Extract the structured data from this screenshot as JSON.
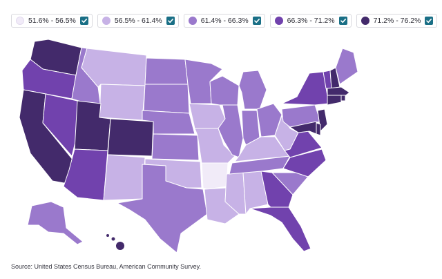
{
  "legend": {
    "items": [
      {
        "label": "51.6% - 56.5%",
        "color": "#f1ebf8",
        "checked": true
      },
      {
        "label": "56.5% - 61.4%",
        "color": "#c7b2e6",
        "checked": true
      },
      {
        "label": "61.4% - 66.3%",
        "color": "#9a79cc",
        "checked": true
      },
      {
        "label": "66.3% - 71.2%",
        "color": "#7142ad",
        "checked": true
      },
      {
        "label": "71.2% - 76.2%",
        "color": "#432a6b",
        "checked": true
      }
    ],
    "check_color": "#1a6f86"
  },
  "map": {
    "type": "choropleth",
    "bins": [
      {
        "range": [
          51.6,
          56.5
        ],
        "color": "#f1ebf8",
        "states": [
          "Arkansas"
        ]
      },
      {
        "range": [
          56.5,
          61.4
        ],
        "color": "#c7b2e6",
        "states": [
          "Montana",
          "Wyoming",
          "New Mexico",
          "Oklahoma",
          "Iowa",
          "Missouri",
          "Louisiana",
          "Mississippi",
          "Alabama",
          "Kentucky",
          "West Virginia"
        ]
      },
      {
        "range": [
          61.4,
          66.3
        ],
        "color": "#9a79cc",
        "states": [
          "Idaho",
          "North Dakota",
          "South Dakota",
          "Nebraska",
          "Kansas",
          "Texas",
          "Minnesota",
          "Wisconsin",
          "Illinois",
          "Indiana",
          "Ohio",
          "Michigan",
          "Tennessee",
          "South Carolina",
          "Pennsylvania",
          "Alaska",
          "Maine"
        ]
      },
      {
        "range": [
          66.3,
          71.2
        ],
        "color": "#7142ad",
        "states": [
          "Oregon",
          "Nevada",
          "Arizona",
          "Georgia",
          "Florida",
          "North Carolina",
          "Virginia",
          "New York",
          "Vermont"
        ]
      },
      {
        "range": [
          71.2,
          76.2
        ],
        "color": "#432a6b",
        "states": [
          "Washington",
          "California",
          "Utah",
          "Colorado",
          "Hawaii",
          "New Hampshire",
          "Massachusetts",
          "Connecticut",
          "New Jersey",
          "Maryland",
          "Delaware",
          "Rhode Island"
        ]
      }
    ]
  },
  "source": "Source: United States Census Bureau, American Community Survey."
}
